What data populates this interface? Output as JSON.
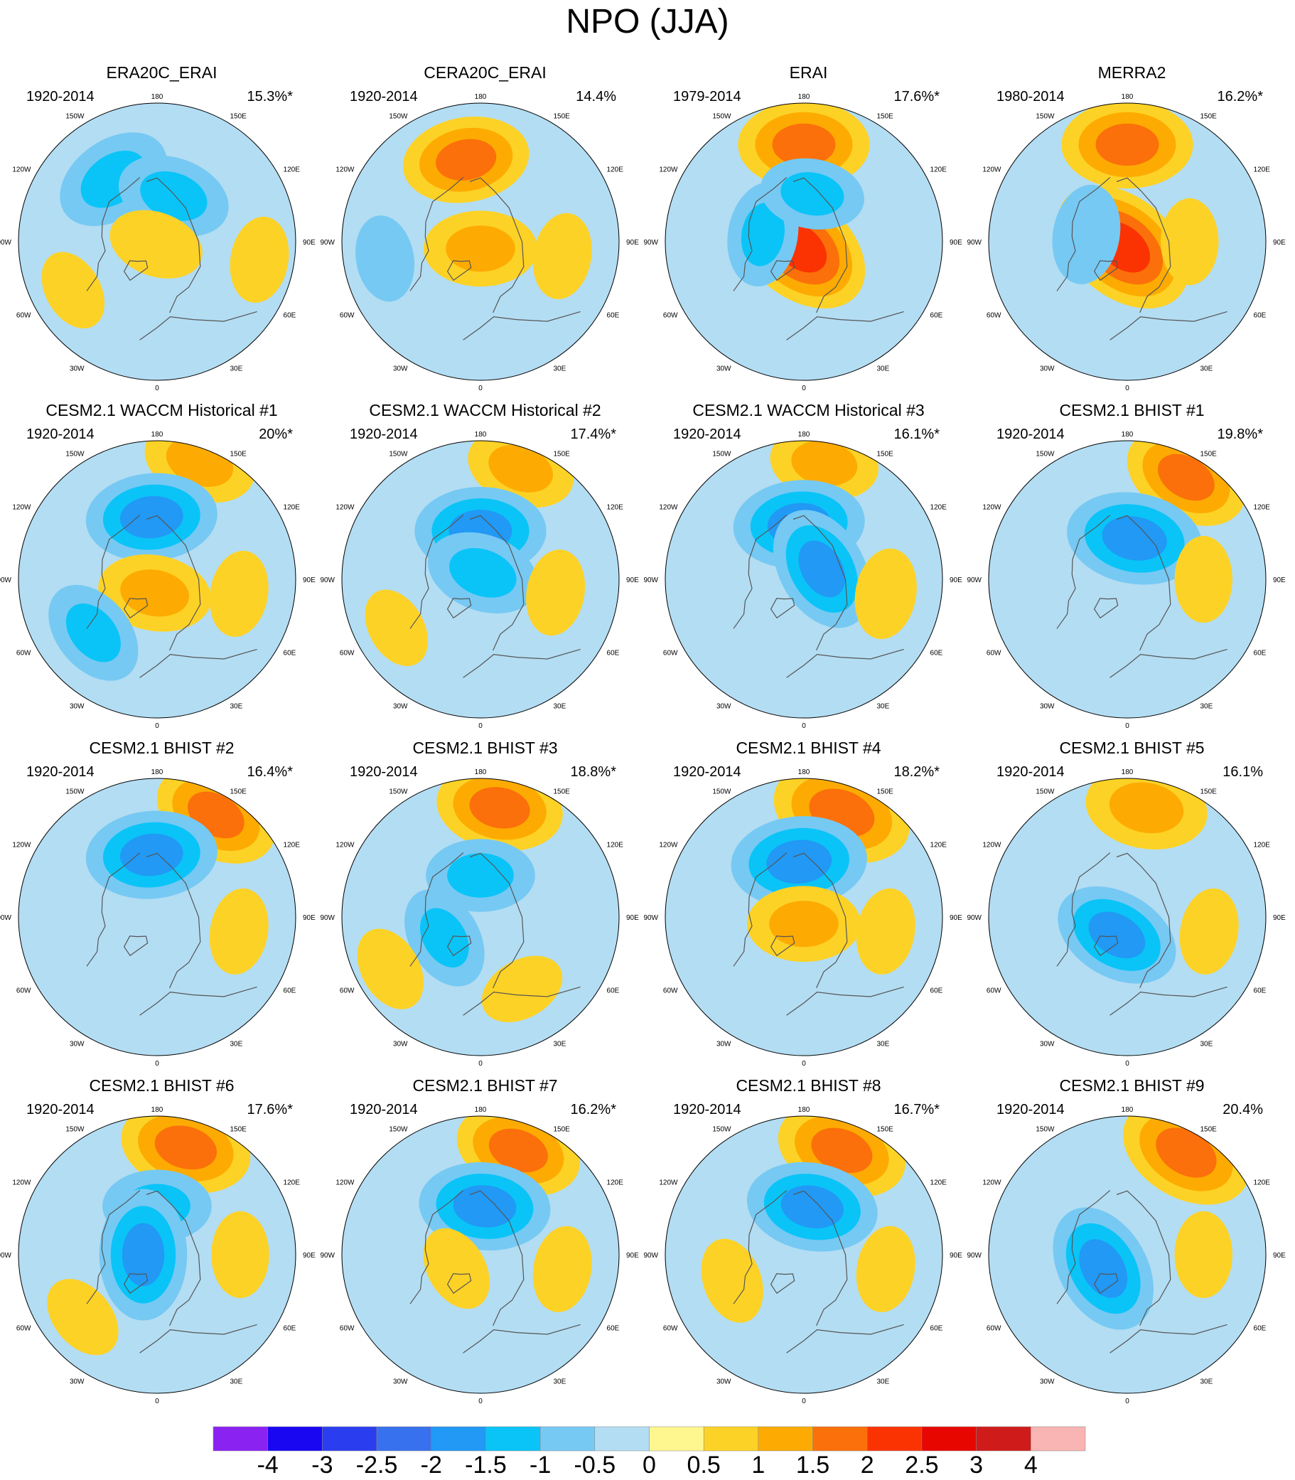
{
  "title": "NPO (JJA)",
  "chart_data": {
    "type": "heatmap",
    "projection": "north polar stereographic",
    "longitude_labels": [
      "180",
      "150W",
      "120W",
      "90W",
      "60W",
      "30W",
      "0",
      "30E",
      "60E",
      "90E",
      "120E",
      "150E"
    ],
    "panels": [
      {
        "name": "ERA20C_ERAI",
        "period": "1920-2014",
        "variance": "15.3%*",
        "features": [
          {
            "lon": -145,
            "r": 0.55,
            "v": -1.3
          },
          {
            "lon": 160,
            "r": 0.35,
            "v": -1.2
          },
          {
            "lon": -20,
            "r": 0.02,
            "v": 0.8
          },
          {
            "lon": 80,
            "r": 0.75,
            "v": 0.6
          },
          {
            "lon": -60,
            "r": 0.7,
            "v": 0.5
          }
        ]
      },
      {
        "name": "CERA20C_ERAI",
        "period": "1920-2014",
        "variance": "14.4%",
        "features": [
          {
            "lon": -170,
            "r": 0.6,
            "v": 1.5
          },
          {
            "lon": 0,
            "r": 0.05,
            "v": 1.2
          },
          {
            "lon": 80,
            "r": 0.6,
            "v": 0.6
          },
          {
            "lon": -80,
            "r": 0.7,
            "v": -0.6
          }
        ]
      },
      {
        "name": "ERAI",
        "period": "1979-2014",
        "variance": "17.6%*",
        "features": [
          {
            "lon": 180,
            "r": 0.7,
            "v": 1.6
          },
          {
            "lon": -40,
            "r": 0.05,
            "v": 2.0
          },
          {
            "lon": -100,
            "r": 0.3,
            "v": -1.0
          },
          {
            "lon": 170,
            "r": 0.35,
            "v": -1.0
          }
        ]
      },
      {
        "name": "MERRA2",
        "period": "1980-2014",
        "variance": "16.2%*",
        "features": [
          {
            "lon": 180,
            "r": 0.7,
            "v": 1.6
          },
          {
            "lon": -40,
            "r": 0.05,
            "v": 2.0
          },
          {
            "lon": -100,
            "r": 0.3,
            "v": -0.9
          },
          {
            "lon": 90,
            "r": 0.45,
            "v": 0.6
          }
        ]
      },
      {
        "name": "CESM2.1 WACCM Historical #1",
        "period": "1920-2014",
        "variance": "20%*",
        "features": [
          {
            "lon": 160,
            "r": 0.9,
            "v": 1.2
          },
          {
            "lon": -175,
            "r": 0.45,
            "v": -1.6
          },
          {
            "lon": -10,
            "r": 0.1,
            "v": 1.2
          },
          {
            "lon": -50,
            "r": 0.6,
            "v": -1.1
          },
          {
            "lon": 80,
            "r": 0.6,
            "v": 0.6
          }
        ]
      },
      {
        "name": "CESM2.1 WACCM Historical #2",
        "period": "1920-2014",
        "variance": "17.4%*",
        "features": [
          {
            "lon": 160,
            "r": 0.85,
            "v": 1.1
          },
          {
            "lon": 180,
            "r": 0.35,
            "v": -1.6
          },
          {
            "lon": 160,
            "r": 0.05,
            "v": -1.2
          },
          {
            "lon": 80,
            "r": 0.55,
            "v": 0.6
          },
          {
            "lon": -60,
            "r": 0.7,
            "v": 0.5
          }
        ]
      },
      {
        "name": "CESM2.1 WACCM Historical #3",
        "period": "1920-2014",
        "variance": "16.1%*",
        "features": [
          {
            "lon": 170,
            "r": 0.85,
            "v": 1.1
          },
          {
            "lon": -175,
            "r": 0.4,
            "v": -1.6
          },
          {
            "lon": 120,
            "r": 0.15,
            "v": -1.5
          },
          {
            "lon": 80,
            "r": 0.6,
            "v": 0.7
          }
        ]
      },
      {
        "name": "CESM2.1 BHIST #1",
        "period": "1920-2014",
        "variance": "19.8%*",
        "features": [
          {
            "lon": 150,
            "r": 0.85,
            "v": 1.5
          },
          {
            "lon": 170,
            "r": 0.3,
            "v": -1.7
          },
          {
            "lon": 90,
            "r": 0.55,
            "v": 0.6
          }
        ]
      },
      {
        "name": "CESM2.1 BHIST #2",
        "period": "1920-2014",
        "variance": "16.4%*",
        "features": [
          {
            "lon": 150,
            "r": 0.85,
            "v": 1.5
          },
          {
            "lon": -175,
            "r": 0.45,
            "v": -1.6
          },
          {
            "lon": 80,
            "r": 0.6,
            "v": 0.6
          }
        ]
      },
      {
        "name": "CESM2.1 BHIST #3",
        "period": "1920-2014",
        "variance": "18.8%*",
        "features": [
          {
            "lon": 170,
            "r": 0.8,
            "v": 1.5
          },
          {
            "lon": 180,
            "r": 0.3,
            "v": -1.1
          },
          {
            "lon": -60,
            "r": 0.3,
            "v": -1.0
          },
          {
            "lon": 30,
            "r": 0.6,
            "v": 0.6
          },
          {
            "lon": -60,
            "r": 0.75,
            "v": 0.6
          }
        ]
      },
      {
        "name": "CESM2.1 BHIST #4",
        "period": "1920-2014",
        "variance": "18.2%*",
        "features": [
          {
            "lon": 160,
            "r": 0.8,
            "v": 1.8
          },
          {
            "lon": -175,
            "r": 0.4,
            "v": -1.7
          },
          {
            "lon": 0,
            "r": 0.05,
            "v": 1.2
          },
          {
            "lon": 80,
            "r": 0.6,
            "v": 0.6
          }
        ]
      },
      {
        "name": "CESM2.1 BHIST #5",
        "period": "1920-2014",
        "variance": "16.1%",
        "features": [
          {
            "lon": 170,
            "r": 0.8,
            "v": 1.4
          },
          {
            "lon": -30,
            "r": 0.15,
            "v": -1.5
          },
          {
            "lon": 80,
            "r": 0.6,
            "v": 0.6
          }
        ]
      },
      {
        "name": "CESM2.1 BHIST #6",
        "period": "1920-2014",
        "variance": "17.6%*",
        "features": [
          {
            "lon": 165,
            "r": 0.8,
            "v": 1.6
          },
          {
            "lon": 180,
            "r": 0.35,
            "v": -1.1
          },
          {
            "lon": -90,
            "r": 0.1,
            "v": -1.6
          },
          {
            "lon": 90,
            "r": 0.6,
            "v": 0.6
          },
          {
            "lon": -50,
            "r": 0.7,
            "v": 0.6
          }
        ]
      },
      {
        "name": "CESM2.1 BHIST #7",
        "period": "1920-2014",
        "variance": "16.2%*",
        "features": [
          {
            "lon": 160,
            "r": 0.8,
            "v": 1.5
          },
          {
            "lon": 175,
            "r": 0.35,
            "v": -1.6
          },
          {
            "lon": -60,
            "r": 0.2,
            "v": 0.6
          },
          {
            "lon": 80,
            "r": 0.6,
            "v": 0.6
          }
        ]
      },
      {
        "name": "CESM2.1 BHIST #8",
        "period": "1920-2014",
        "variance": "16.7%*",
        "features": [
          {
            "lon": 160,
            "r": 0.8,
            "v": 1.6
          },
          {
            "lon": 170,
            "r": 0.35,
            "v": -1.6
          },
          {
            "lon": -70,
            "r": 0.55,
            "v": 0.6
          },
          {
            "lon": 80,
            "r": 0.6,
            "v": 0.6
          }
        ]
      },
      {
        "name": "CESM2.1 BHIST #9",
        "period": "1920-2014",
        "variance": "20.4%",
        "features": [
          {
            "lon": 150,
            "r": 0.85,
            "v": 1.7
          },
          {
            "lon": -60,
            "r": 0.2,
            "v": -1.6
          },
          {
            "lon": 90,
            "r": 0.55,
            "v": 0.6
          }
        ]
      }
    ],
    "colorbar": {
      "ticks": [
        "-4",
        "-3",
        "-2.5",
        "-2",
        "-1.5",
        "-1",
        "-0.5",
        "0",
        "0.5",
        "1",
        "1.5",
        "2",
        "2.5",
        "3",
        "4"
      ],
      "colors": [
        "#8a22f2",
        "#1a07f2",
        "#2a3ef0",
        "#3871ed",
        "#2199f5",
        "#0ac4f7",
        "#76c9f3",
        "#b3ddf3",
        "#fef78f",
        "#fdd226",
        "#fdab02",
        "#fb700a",
        "#fb3303",
        "#e80700",
        "#d01b1b",
        "#f9b4b4"
      ],
      "bounds": [
        -5,
        -4,
        -3,
        -2.5,
        -2,
        -1.5,
        -1,
        -0.5,
        0,
        0.5,
        1,
        1.5,
        2,
        2.5,
        3,
        4,
        5
      ]
    }
  }
}
